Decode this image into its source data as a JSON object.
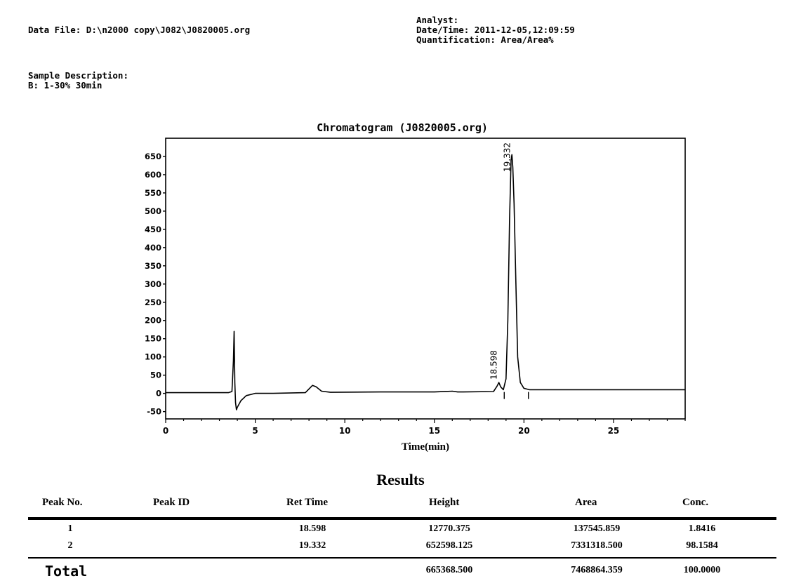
{
  "header": {
    "data_file_label": "Data File:",
    "data_file_value": "D:\\n2000 copy\\J082\\J0820005.org",
    "analyst_label": "Analyst:",
    "analyst_value": "",
    "datetime_label": "Date/Time:",
    "datetime_value": "2011-12-05,12:09:59",
    "quantification_label": "Quantification:",
    "quantification_value": "Area/Area%"
  },
  "sample": {
    "label": "Sample Description:",
    "value": "B: 1-30% 30min"
  },
  "chart_data": {
    "type": "line",
    "title": "Chromatogram (J0820005.org)",
    "xlabel": "Time(min)",
    "ylabel": "",
    "xlim": [
      0,
      29
    ],
    "ylim": [
      -70,
      700
    ],
    "x_ticks": [
      0,
      5,
      10,
      15,
      20,
      25
    ],
    "y_ticks": [
      -50,
      0,
      50,
      100,
      150,
      200,
      250,
      300,
      350,
      400,
      450,
      500,
      550,
      600,
      650
    ],
    "grid": false,
    "series": [
      {
        "x": [
          0,
          3.5,
          3.7,
          3.78,
          3.82,
          3.86,
          3.9,
          3.95,
          4.0,
          4.2,
          4.5,
          5.0,
          6.0,
          7.8,
          8.2,
          8.4,
          8.7,
          9.2,
          12.0,
          15.0,
          16.0,
          16.3,
          16.6,
          18.3,
          18.5,
          18.6,
          18.7,
          18.85,
          19.0,
          19.1,
          19.2,
          19.28,
          19.33,
          19.38,
          19.45,
          19.55,
          19.65,
          19.8,
          20.0,
          20.3,
          25.0,
          29.0
        ],
        "y": [
          2,
          2,
          5,
          90,
          170,
          30,
          -25,
          -45,
          -38,
          -20,
          -6,
          0,
          0,
          2,
          22,
          18,
          6,
          3,
          4,
          4,
          6,
          4,
          4,
          5,
          20,
          30,
          18,
          10,
          40,
          200,
          480,
          640,
          655,
          620,
          520,
          300,
          100,
          30,
          14,
          10,
          10,
          10
        ]
      }
    ],
    "peak_labels": [
      {
        "x": 18.598,
        "y": 30,
        "label": "18.598"
      },
      {
        "x": 19.332,
        "y": 655,
        "label": "19.332"
      }
    ],
    "baseline_markers": [
      18.9,
      20.25
    ]
  },
  "results": {
    "title": "Results",
    "columns": [
      "Peak No.",
      "Peak ID",
      "Ret Time",
      "Height",
      "Area",
      "Conc."
    ],
    "rows": [
      {
        "peak_no": "1",
        "peak_id": "",
        "ret_time": "18.598",
        "height": "12770.375",
        "area": "137545.859",
        "conc": "1.8416"
      },
      {
        "peak_no": "2",
        "peak_id": "",
        "ret_time": "19.332",
        "height": "652598.125",
        "area": "7331318.500",
        "conc": "98.1584"
      }
    ],
    "total": {
      "label": "Total",
      "height": "665368.500",
      "area": "7468864.359",
      "conc": "100.0000"
    }
  }
}
